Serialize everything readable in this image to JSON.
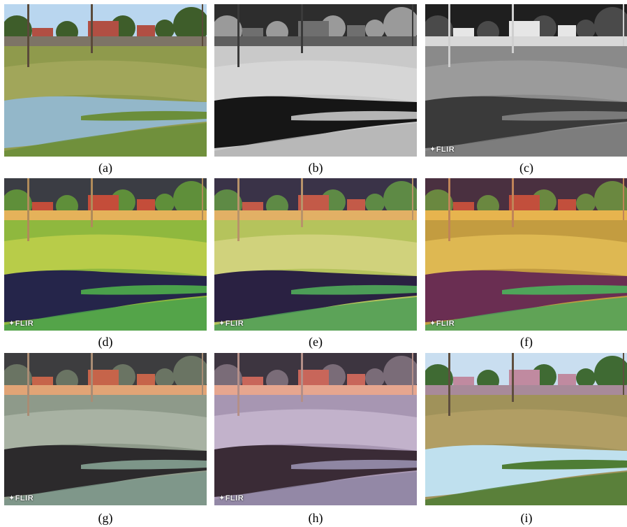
{
  "panels": [
    {
      "id": "a",
      "caption": "(a)",
      "logo": "",
      "palette": {
        "sky": "#b9d6ef",
        "tree": "#3e5d2a",
        "build": "#b14f43",
        "fence": "#7d7466",
        "ground": "#8f9a4c",
        "ground2": "#a8ab61",
        "water": "#93b7c9",
        "reeds": "#6b8e3a",
        "pole": "#5a4a3a"
      }
    },
    {
      "id": "b",
      "caption": "(b)",
      "logo": "",
      "palette": {
        "sky": "#2d2d2d",
        "tree": "#9a9a9a",
        "build": "#6f6f6f",
        "fence": "#5e5e5e",
        "ground": "#c9c9c9",
        "ground2": "#dcdcdc",
        "water": "#161616",
        "reeds": "#b5b5b5",
        "pole": "#3a3a3a"
      }
    },
    {
      "id": "c",
      "caption": "(c)",
      "logo": "FLIR",
      "palette": {
        "sky": "#1f1f1f",
        "tree": "#4a4a4a",
        "build": "#e6e6e6",
        "fence": "#d8d8d8",
        "ground": "#8a8a8a",
        "ground2": "#a3a3a3",
        "water": "#3a3a3a",
        "reeds": "#7a7a7a",
        "pole": "#cfcfcf"
      }
    },
    {
      "id": "d",
      "caption": "(d)",
      "logo": "FLIR",
      "palette": {
        "sky": "#3b3d44",
        "tree": "#5f8f3a",
        "build": "#c44d3a",
        "fence": "#e5b25a",
        "ground": "#8fb83e",
        "ground2": "#c9d44e",
        "water": "#25254a",
        "reeds": "#4aa04b",
        "pole": "#b08b5a"
      }
    },
    {
      "id": "e",
      "caption": "(e)",
      "logo": "FLIR",
      "palette": {
        "sky": "#3a3348",
        "tree": "#5e8a45",
        "build": "#c35a48",
        "fence": "#e2b065",
        "ground": "#b5c35c",
        "ground2": "#dcd88a",
        "water": "#2a2142",
        "reeds": "#4c9d57",
        "pole": "#b8936a"
      }
    },
    {
      "id": "f",
      "caption": "(f)",
      "logo": "FLIR",
      "palette": {
        "sky": "#4a3040",
        "tree": "#6a8840",
        "build": "#c24f3c",
        "fence": "#e7b44e",
        "ground": "#c39c40",
        "ground2": "#eac45a",
        "water": "#6a2e52",
        "reeds": "#4fa55a",
        "pole": "#c08458"
      }
    },
    {
      "id": "g",
      "caption": "(g)",
      "logo": "FLIR",
      "palette": {
        "sky": "#3d3d3f",
        "tree": "#6a7463",
        "build": "#c6644a",
        "fence": "#e1a476",
        "ground": "#8e9a8a",
        "ground2": "#b4bcae",
        "water": "#2c2a2c",
        "reeds": "#7d9689",
        "pole": "#a98c74"
      }
    },
    {
      "id": "h",
      "caption": "(h)",
      "logo": "FLIR",
      "palette": {
        "sky": "#3d3540",
        "tree": "#7a6c78",
        "build": "#c8665a",
        "fence": "#e6a68f",
        "ground": "#a796b2",
        "ground2": "#cdbdd6",
        "water": "#3a2b36",
        "reeds": "#8f86a3",
        "pole": "#b48f88"
      }
    },
    {
      "id": "i",
      "caption": "(i)",
      "logo": "",
      "palette": {
        "sky": "#c9def0",
        "tree": "#3f6a33",
        "build": "#c08aa0",
        "fence": "#a88a9a",
        "ground": "#a0925a",
        "ground2": "#b8a468",
        "water": "#bfe0ee",
        "reeds": "#4e7d35",
        "pole": "#5e4e3e"
      }
    }
  ]
}
